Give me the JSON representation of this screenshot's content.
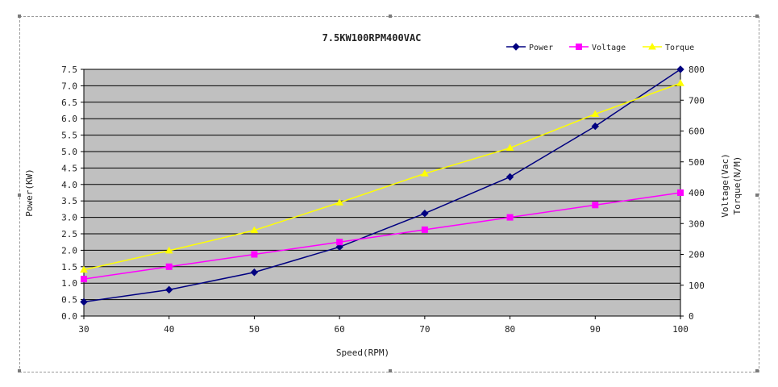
{
  "chart_data": {
    "type": "line",
    "title": "7.5KW100RPM400VAC",
    "xlabel": "Speed(RPM)",
    "ylabel_left": "Power(KW)",
    "ylabel_right": [
      "Voltage(Vac)",
      "Torque(N/M)"
    ],
    "x": [
      30,
      40,
      50,
      60,
      70,
      80,
      90,
      100
    ],
    "xlim": [
      30,
      100
    ],
    "x_ticks": [
      "30",
      "40",
      "50",
      "60",
      "70",
      "80",
      "90",
      "100"
    ],
    "ylim_left": [
      0,
      7.5
    ],
    "y_ticks_left": [
      "0.0",
      "0.5",
      "1.0",
      "1.5",
      "2.0",
      "2.5",
      "3.0",
      "3.5",
      "4.0",
      "4.5",
      "5.0",
      "5.5",
      "6.0",
      "6.5",
      "7.0",
      "7.5"
    ],
    "ylim_right": [
      0,
      800
    ],
    "y_ticks_right": [
      "0",
      "100",
      "200",
      "300",
      "400",
      "500",
      "600",
      "700",
      "800"
    ],
    "grid": true,
    "legend_position": "top-right",
    "series": [
      {
        "name": "Power",
        "axis": "left",
        "marker": "diamond",
        "color": "#000080",
        "values": [
          0.43,
          0.8,
          1.33,
          2.1,
          3.12,
          4.23,
          5.77,
          7.5
        ]
      },
      {
        "name": "Voltage",
        "axis": "right",
        "marker": "square",
        "color": "#ff00ff",
        "values": [
          120,
          160,
          200,
          240,
          280,
          320,
          360,
          400
        ]
      },
      {
        "name": "Torque",
        "axis": "right",
        "marker": "triangle",
        "color": "#ffff00",
        "values": [
          150,
          212,
          278,
          368,
          462,
          545,
          655,
          755
        ]
      }
    ]
  }
}
